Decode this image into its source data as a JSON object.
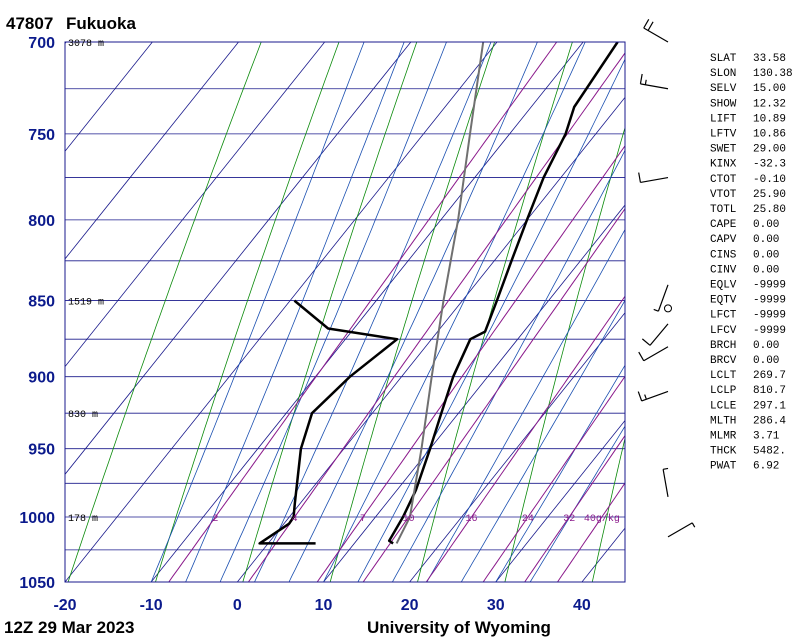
{
  "header": {
    "station_id": "47807",
    "station_name": "Fukuoka"
  },
  "footer": {
    "time_label": "12Z 29 Mar 2023",
    "source": "University of Wyoming"
  },
  "colors": {
    "isobar": "#1a1a8c",
    "isotherm": "#1a1a8c",
    "dry_adiabat": "#0a8a0a",
    "moist_adiabat": "#1a4fb0",
    "mixing_ratio": "#8b1a8b",
    "profile": "#000000",
    "parcel": "#707070",
    "axis_text": "#0b1a8c"
  },
  "chart_data": {
    "type": "line",
    "title": "47807  Fukuoka",
    "xlabel": "",
    "ylabel": "",
    "x_axis": {
      "ticks": [
        -20,
        -10,
        0,
        10,
        20,
        30,
        40
      ],
      "labels": [
        "-20",
        "-10",
        "0",
        "10",
        "20",
        "30",
        "40"
      ],
      "range": [
        -20,
        45
      ]
    },
    "y_axis": {
      "ticks": [
        700,
        750,
        800,
        850,
        900,
        950,
        1000,
        1050
      ],
      "labels": [
        "700",
        "750",
        "800",
        "850",
        "900",
        "950",
        "1000",
        "1050"
      ],
      "range": [
        1050,
        700
      ],
      "scale": "log"
    },
    "height_labels": [
      {
        "p": 700,
        "text": "3078 m"
      },
      {
        "p": 850,
        "text": "1519 m"
      },
      {
        "p": 925,
        "text": "830 m"
      },
      {
        "p": 1000,
        "text": "178 m"
      }
    ],
    "mixing_ratio_labels": [
      "2",
      "4",
      "7",
      "10",
      "16",
      "24",
      "32",
      "40g/kg"
    ],
    "mixing_ratio_values": [
      2,
      4,
      7,
      10,
      16,
      24,
      32,
      40
    ],
    "series": [
      {
        "name": "",
        "role": "temperature",
        "points": [
          [
            1020,
            14.5
          ],
          [
            1018,
            13.8
          ],
          [
            1000,
            13.2
          ],
          [
            980,
            12.2
          ],
          [
            950,
            10.0
          ],
          [
            925,
            8.0
          ],
          [
            900,
            6.0
          ],
          [
            875,
            4.5
          ],
          [
            870,
            5.5
          ],
          [
            850,
            4.0
          ],
          [
            825,
            2.0
          ],
          [
            800,
            0.0
          ],
          [
            775,
            -2.0
          ],
          [
            750,
            -3.5
          ],
          [
            735,
            -5.0
          ],
          [
            700,
            -6.0
          ]
        ]
      },
      {
        "name": "",
        "role": "dewpoint",
        "points": [
          [
            1020,
            5.5
          ],
          [
            1020,
            -1.0
          ],
          [
            1005,
            0.6
          ],
          [
            1000,
            0.5
          ],
          [
            990,
            -0.6
          ],
          [
            950,
            -5.0
          ],
          [
            925,
            -7.0
          ],
          [
            900,
            -6.0
          ],
          [
            875,
            -4.0
          ],
          [
            868,
            -13.0
          ],
          [
            850,
            -19.5
          ]
        ]
      },
      {
        "name": "",
        "role": "parcel",
        "points": [
          [
            1020,
            14.9
          ],
          [
            1000,
            14.0
          ],
          [
            950,
            9.0
          ],
          [
            900,
            3.5
          ],
          [
            850,
            -2.2
          ],
          [
            800,
            -8.0
          ],
          [
            750,
            -14.6
          ],
          [
            700,
            -21.6
          ]
        ]
      }
    ],
    "wind_barbs": [
      {
        "p": 700,
        "speed": 20,
        "dir": 300
      },
      {
        "p": 725,
        "speed": 15,
        "dir": 280
      },
      {
        "p": 775,
        "speed": 10,
        "dir": 260
      },
      {
        "p": 840,
        "speed": 5,
        "dir": 200
      },
      {
        "p": 855,
        "speed": 0,
        "dir": 0
      },
      {
        "p": 865,
        "speed": 10,
        "dir": 220
      },
      {
        "p": 880,
        "speed": 10,
        "dir": 240
      },
      {
        "p": 910,
        "speed": 15,
        "dir": 250
      },
      {
        "p": 985,
        "speed": 5,
        "dir": 350
      },
      {
        "p": 1015,
        "speed": 5,
        "dir": 60
      }
    ]
  },
  "indices": [
    {
      "key": "SLAT",
      "value": "33.58"
    },
    {
      "key": "SLON",
      "value": "130.38"
    },
    {
      "key": "SELV",
      "value": "15.00"
    },
    {
      "key": "SHOW",
      "value": "12.32"
    },
    {
      "key": "LIFT",
      "value": "10.89"
    },
    {
      "key": "LFTV",
      "value": "10.86"
    },
    {
      "key": "SWET",
      "value": "29.00"
    },
    {
      "key": "KINX",
      "value": "-32.3"
    },
    {
      "key": "CTOT",
      "value": "-0.10"
    },
    {
      "key": "VTOT",
      "value": "25.90"
    },
    {
      "key": "TOTL",
      "value": "25.80"
    },
    {
      "key": "CAPE",
      "value": "0.00"
    },
    {
      "key": "CAPV",
      "value": "0.00"
    },
    {
      "key": "CINS",
      "value": "0.00"
    },
    {
      "key": "CINV",
      "value": "0.00"
    },
    {
      "key": "EQLV",
      "value": "-9999"
    },
    {
      "key": "EQTV",
      "value": "-9999"
    },
    {
      "key": "LFCT",
      "value": "-9999"
    },
    {
      "key": "LFCV",
      "value": "-9999"
    },
    {
      "key": "BRCH",
      "value": "0.00"
    },
    {
      "key": "BRCV",
      "value": "0.00"
    },
    {
      "key": "LCLT",
      "value": "269.7"
    },
    {
      "key": "LCLP",
      "value": "810.7"
    },
    {
      "key": "LCLE",
      "value": "297.1"
    },
    {
      "key": "MLTH",
      "value": "286.4"
    },
    {
      "key": "MLMR",
      "value": "3.71"
    },
    {
      "key": "THCK",
      "value": "5482."
    },
    {
      "key": "PWAT",
      "value": "6.92"
    }
  ]
}
